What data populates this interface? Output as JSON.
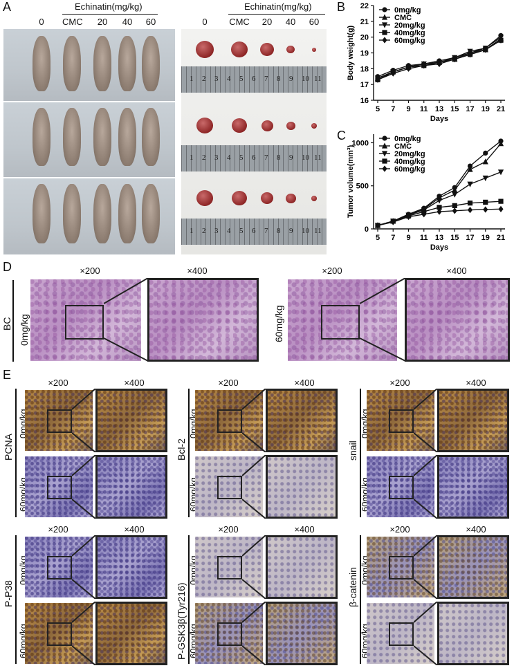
{
  "panels": {
    "A": "A",
    "B": "B",
    "C": "C",
    "D": "D",
    "E": "E"
  },
  "panelA": {
    "left_header": "Echinatin(mg/kg)",
    "left_groups": [
      "0",
      "CMC",
      "20",
      "40",
      "60"
    ],
    "right_header": "Echinatin(mg/kg)",
    "right_groups": [
      "0",
      "CMC",
      "20",
      "40",
      "60"
    ],
    "ruler_numbers": [
      "1",
      "2",
      "3",
      "4",
      "5",
      "6",
      "7",
      "8",
      "9",
      "10",
      "11"
    ]
  },
  "chart_data": [
    {
      "type": "line",
      "ylabel": "Body weight(g)",
      "xlabel": "Days",
      "x": [
        5,
        7,
        9,
        11,
        13,
        15,
        17,
        19,
        21
      ],
      "ylim": [
        16,
        22
      ],
      "yticks": [
        "16",
        "17",
        "18",
        "19",
        "20",
        "21",
        "22"
      ],
      "xticks": [
        "5",
        "7",
        "9",
        "11",
        "13",
        "15",
        "17",
        "19",
        "21"
      ],
      "legend_placement": "top-left",
      "series": [
        {
          "name": "0mg/kg",
          "marker": "circle",
          "values": [
            17.5,
            17.9,
            18.2,
            18.3,
            18.5,
            18.7,
            19.0,
            19.3,
            20.1
          ]
        },
        {
          "name": "CMC",
          "marker": "triangle-up",
          "values": [
            17.4,
            17.8,
            18.1,
            18.3,
            18.4,
            18.6,
            19.0,
            19.2,
            19.9
          ]
        },
        {
          "name": "20mg/kg",
          "marker": "triangle-down",
          "values": [
            17.4,
            17.8,
            18.1,
            18.3,
            18.4,
            18.7,
            19.1,
            19.3,
            20.0
          ]
        },
        {
          "name": "40mg/kg",
          "marker": "square",
          "values": [
            17.3,
            17.8,
            18.1,
            18.2,
            18.4,
            18.6,
            18.9,
            19.2,
            19.8
          ]
        },
        {
          "name": "60mg/kg",
          "marker": "diamond",
          "values": [
            17.3,
            17.7,
            18.0,
            18.2,
            18.3,
            18.6,
            18.9,
            19.2,
            19.8
          ]
        }
      ]
    },
    {
      "type": "line",
      "ylabel": "Tumor volume(mm³)",
      "xlabel": "Days",
      "x": [
        5,
        7,
        9,
        11,
        13,
        15,
        17,
        19,
        21
      ],
      "ylim": [
        0,
        1100
      ],
      "yticks": [
        "0",
        "500",
        "1000"
      ],
      "xticks": [
        "5",
        "7",
        "9",
        "11",
        "13",
        "15",
        "17",
        "19",
        "21"
      ],
      "legend_placement": "top-left",
      "series": [
        {
          "name": "0mg/kg",
          "marker": "circle",
          "values": [
            40,
            90,
            170,
            240,
            380,
            480,
            730,
            880,
            1020
          ]
        },
        {
          "name": "CMC",
          "marker": "triangle-up",
          "values": [
            40,
            90,
            160,
            230,
            360,
            450,
            690,
            780,
            990
          ]
        },
        {
          "name": "20mg/kg",
          "marker": "triangle-down",
          "values": [
            40,
            90,
            160,
            220,
            330,
            400,
            520,
            590,
            660
          ]
        },
        {
          "name": "40mg/kg",
          "marker": "square",
          "values": [
            40,
            90,
            150,
            200,
            250,
            270,
            300,
            310,
            320
          ]
        },
        {
          "name": "60mg/kg",
          "marker": "diamond",
          "values": [
            40,
            80,
            140,
            170,
            200,
            210,
            220,
            225,
            230
          ]
        }
      ]
    }
  ],
  "panelD": {
    "left_row_label": "BC",
    "left_dose": "0mg/kg",
    "right_dose": "60mg/kg",
    "mag_low": "×200",
    "mag_high": "×400"
  },
  "panelE": {
    "mag_low": "×200",
    "mag_high": "×400",
    "dose_top": "0mg/kg",
    "dose_bottom": "60mg/kg",
    "markers": [
      "PCNA",
      "Bcl-2",
      "snail",
      "P-P38",
      "P-GSK3β(Tyr216)",
      "β-catenin"
    ]
  }
}
